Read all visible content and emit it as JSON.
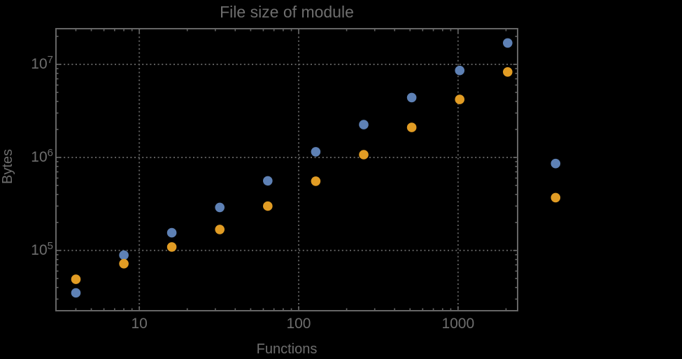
{
  "title": "File size of module",
  "axes": {
    "x": {
      "label": "Functions"
    },
    "y": {
      "label": "Bytes"
    }
  },
  "colors": {
    "background": "#000000",
    "frame": "#666666",
    "grid": "#5c5c5c",
    "text": "#6e6e6e",
    "series1": "#5e81b5",
    "series2": "#e19c24"
  },
  "chart_data": {
    "type": "scatter",
    "title": "File size of module",
    "xlabel": "Functions",
    "ylabel": "Bytes",
    "xscale": "log",
    "yscale": "log",
    "grid": true,
    "legend": "none",
    "xlim": [
      3,
      2365
    ],
    "ylim": [
      22500,
      24200000
    ],
    "x_ticks": [
      {
        "value": 10,
        "label": "10"
      },
      {
        "value": 100,
        "label": "100"
      },
      {
        "value": 1000,
        "label": "1000"
      }
    ],
    "y_ticks": [
      {
        "value": 100000,
        "mantissa": "10",
        "exponent": "5"
      },
      {
        "value": 1000000,
        "mantissa": "10",
        "exponent": "6"
      },
      {
        "value": 10000000,
        "mantissa": "10",
        "exponent": "7"
      }
    ],
    "x": [
      4,
      8,
      16,
      32,
      64,
      128,
      256,
      512,
      1024,
      2048,
      4096
    ],
    "series": [
      {
        "name": "blue",
        "color_key": "series1",
        "values": [
          35000,
          89000,
          155000,
          290000,
          560000,
          1150000,
          2250000,
          4400000,
          8600000,
          17000000,
          860000
        ]
      },
      {
        "name": "orange",
        "color_key": "series2",
        "values": [
          49000,
          72000,
          109000,
          168000,
          300000,
          555000,
          1070000,
          2100000,
          4200000,
          8300000,
          370000
        ]
      }
    ]
  }
}
